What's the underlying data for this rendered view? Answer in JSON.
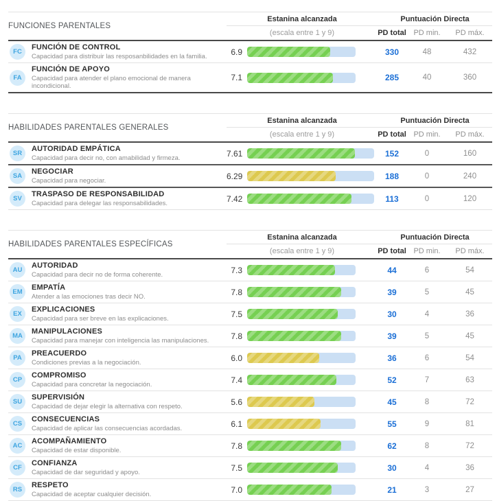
{
  "colors": {
    "accent_blue": "#1b6fd6",
    "badge_bg": "#d4ebfa",
    "badge_text": "#3fa5e0",
    "bar_track": "#cbdff4",
    "bar_green": "#76d052",
    "bar_yellow": "#ddc94f",
    "line_light": "#e2e2e2",
    "line_dark": "#484848",
    "text_dark": "#333333",
    "text_gray": "#8c8c8c",
    "text_section": "#54575a"
  },
  "column_headers": {
    "estanina": "Estanina alcanzada",
    "estanina_sub": "(escala entre 1 y 9)",
    "puntuacion": "Puntuación Directa",
    "pd_total": "PD total",
    "pd_min": "PD min.",
    "pd_max": "PD máx."
  },
  "scale": {
    "min": 1,
    "max": 9
  },
  "sections": [
    {
      "title": "FUNCIONES PARENTALES",
      "rows": [
        {
          "code": "FC",
          "name": "FUNCIÓN DE CONTROL",
          "description": "Capacidad para distribuir las resposanbilidades en la familia.",
          "stanine": "6.9",
          "bar_color": "green",
          "pd_total": "330",
          "pd_min": "48",
          "pd_max": "432"
        },
        {
          "code": "FA",
          "name": "FUNCIÓN DE APOYO",
          "description": "Capacidad para atender el plano emocional de manera incondicional.",
          "stanine": "7.1",
          "bar_color": "green",
          "pd_total": "285",
          "pd_min": "40",
          "pd_max": "360"
        }
      ]
    },
    {
      "title": "HABILIDADES PARENTALES GENERALES",
      "rows": [
        {
          "code": "SR",
          "name": "AUTORIDAD EMPÁTICA",
          "description": "Capacidad para decir no, con amabilidad y firmeza.",
          "stanine": "7.61",
          "bar_color": "green",
          "pd_total": "152",
          "pd_min": "0",
          "pd_max": "160"
        },
        {
          "code": "SA",
          "name": "NEGOCIAR",
          "description": "Capacidad para negociar.",
          "stanine": "6.29",
          "bar_color": "yellow",
          "pd_total": "188",
          "pd_min": "0",
          "pd_max": "240"
        },
        {
          "code": "SV",
          "name": "TRASPASO DE RESPONSABILIDAD",
          "description": "Capacidad para delegar las responsabilidades.",
          "stanine": "7.42",
          "bar_color": "green",
          "pd_total": "113",
          "pd_min": "0",
          "pd_max": "120"
        }
      ]
    },
    {
      "title": "HABILIDADES PARENTALES ESPECÍFICAS",
      "rows": [
        {
          "code": "AU",
          "name": "AUTORIDAD",
          "description": "Capacidad para decir no de forma coherente.",
          "stanine": "7.3",
          "bar_color": "green",
          "pd_total": "44",
          "pd_min": "6",
          "pd_max": "54"
        },
        {
          "code": "EM",
          "name": "EMPATÍA",
          "description": "Atender a las emociones tras decir NO.",
          "stanine": "7.8",
          "bar_color": "green",
          "pd_total": "39",
          "pd_min": "5",
          "pd_max": "45"
        },
        {
          "code": "EX",
          "name": "EXPLICACIONES",
          "description": "Capacidad para ser breve en las explicaciones.",
          "stanine": "7.5",
          "bar_color": "green",
          "pd_total": "30",
          "pd_min": "4",
          "pd_max": "36"
        },
        {
          "code": "MA",
          "name": "MANIPULACIONES",
          "description": "Capacidad para manejar con inteligencia las manipulaciones.",
          "stanine": "7.8",
          "bar_color": "green",
          "pd_total": "39",
          "pd_min": "5",
          "pd_max": "45"
        },
        {
          "code": "PA",
          "name": "PREACUERDO",
          "description": "Condiciones previas a la negociación.",
          "stanine": "6.0",
          "bar_color": "yellow",
          "pd_total": "36",
          "pd_min": "6",
          "pd_max": "54"
        },
        {
          "code": "CP",
          "name": "COMPROMISO",
          "description": "Capacidad para concretar la negociación.",
          "stanine": "7.4",
          "bar_color": "green",
          "pd_total": "52",
          "pd_min": "7",
          "pd_max": "63"
        },
        {
          "code": "SU",
          "name": "SUPERVISIÓN",
          "description": "Capacidad de dejar elegir la alternativa con respeto.",
          "stanine": "5.6",
          "bar_color": "yellow",
          "pd_total": "45",
          "pd_min": "8",
          "pd_max": "72"
        },
        {
          "code": "CS",
          "name": "CONSECUENCIAS",
          "description": "Capacidad de aplicar las consecuencias acordadas.",
          "stanine": "6.1",
          "bar_color": "yellow",
          "pd_total": "55",
          "pd_min": "9",
          "pd_max": "81"
        },
        {
          "code": "AC",
          "name": "ACOMPAÑAMIENTO",
          "description": "Capacidad de estar disponible.",
          "stanine": "7.8",
          "bar_color": "green",
          "pd_total": "62",
          "pd_min": "8",
          "pd_max": "72"
        },
        {
          "code": "CF",
          "name": "CONFIANZA",
          "description": "Capacidad de dar seguridad y apoyo.",
          "stanine": "7.5",
          "bar_color": "green",
          "pd_total": "30",
          "pd_min": "4",
          "pd_max": "36"
        },
        {
          "code": "RS",
          "name": "RESPETO",
          "description": "Capacidad de aceptar cualquier decisión.",
          "stanine": "7.0",
          "bar_color": "green",
          "pd_total": "21",
          "pd_min": "3",
          "pd_max": "27"
        }
      ]
    }
  ]
}
